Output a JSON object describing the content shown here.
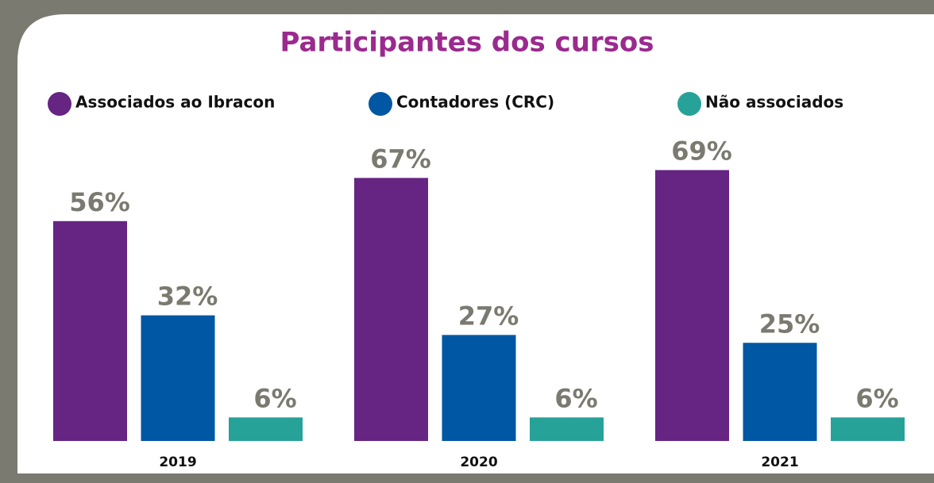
{
  "chart_data": {
    "type": "bar",
    "title": "Participantes dos cursos",
    "categories": [
      "2019",
      "2020",
      "2021"
    ],
    "series": [
      {
        "name": "Associados ao Ibracon",
        "color": "#662483",
        "values": [
          56,
          67,
          69
        ],
        "value_labels": [
          "56%",
          "67%",
          "69%"
        ]
      },
      {
        "name": "Contadores (CRC)",
        "color": "#0057a4",
        "values": [
          32,
          27,
          25
        ],
        "value_labels": [
          "32%",
          "27%",
          "25%"
        ]
      },
      {
        "name": "Não associados",
        "color": "#27a299",
        "values": [
          6,
          6,
          6
        ],
        "value_labels": [
          "6%",
          "6%",
          "6%"
        ]
      }
    ]
  }
}
